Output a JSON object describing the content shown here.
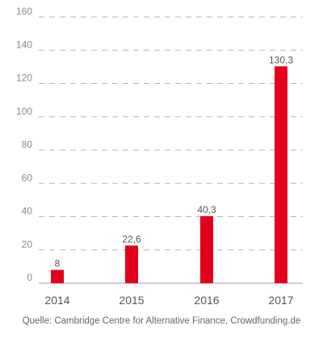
{
  "chart_data": {
    "type": "bar",
    "categories": [
      "2014",
      "2015",
      "2016",
      "2017"
    ],
    "values": [
      8,
      22.6,
      40.3,
      130.3
    ],
    "value_labels": [
      "8",
      "22,6",
      "40,3",
      "130,3"
    ],
    "ylim": [
      0,
      160
    ],
    "yticks": [
      0,
      20,
      40,
      60,
      80,
      100,
      120,
      140,
      160
    ],
    "grid": true,
    "grid_style": "dashed",
    "bar_color": "#e2001a",
    "title": "",
    "xlabel": "",
    "ylabel": ""
  },
  "source": "Quelle: Cambridge Centre for Alternative Finance, Crowdfunding.de"
}
